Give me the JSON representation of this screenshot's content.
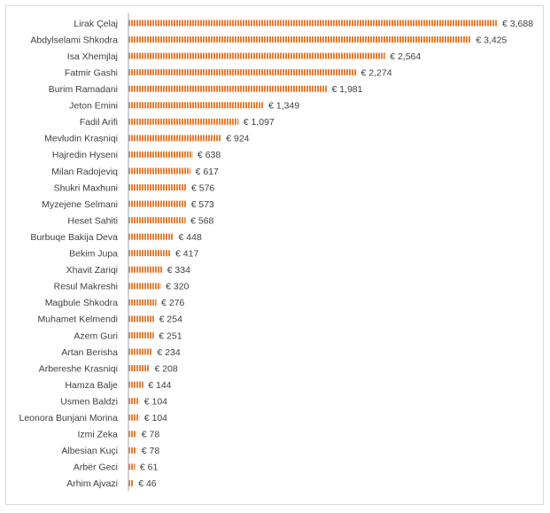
{
  "chart_data": {
    "type": "bar",
    "orientation": "horizontal",
    "title": "",
    "xlabel": "",
    "ylabel": "",
    "currency_prefix": "€ ",
    "bar_color": "#ED7D31",
    "bar_pattern": "vertical-hatch",
    "grid": false,
    "legend": "none",
    "xlim": [
      0,
      3688
    ],
    "categories": [
      "Lirak Çelaj",
      "Abdylselami Shkodra",
      "Isa Xhemjlaj",
      "Fatmir Gashi",
      "Burim Ramadani",
      "Jeton Emini",
      "Fadil Arifi",
      "Mevludin Krasniqi",
      "Hajredin Hyseni",
      "Milan Radojeviq",
      "Shukri Maxhuni",
      "Myzejene Selmani",
      "Heset Sahiti",
      "Burbuqe Bakija Deva",
      "Bekim Jupa",
      "Xhavit Zariqi",
      "Resul Makreshi",
      "Magbule Shkodra",
      "Muhamet Kelmendi",
      "Azem Guri",
      "Artan Berisha",
      "Arbereshe Krasniqi",
      "Hamza Balje",
      "Usmen Baldzi",
      "Leonora Bunjani Morina",
      "Izmi Zeka",
      "Albesian Kuçi",
      "Arbër Geci",
      "Arhim Ajvazi"
    ],
    "values": [
      3688,
      3425,
      2564,
      2274,
      1981,
      1349,
      1097,
      924,
      638,
      617,
      576,
      573,
      568,
      448,
      417,
      334,
      320,
      276,
      254,
      251,
      234,
      208,
      144,
      104,
      104,
      78,
      78,
      61,
      46
    ],
    "value_labels": [
      "€ 3,688",
      "€ 3,425",
      "€ 2,564",
      "€ 2,274",
      "€ 1,981",
      "€ 1,349",
      "€ 1,097",
      "€ 924",
      "€ 638",
      "€ 617",
      "€ 576",
      "€ 573",
      "€ 568",
      "€ 448",
      "€ 417",
      "€ 334",
      "€ 320",
      "€ 276",
      "€ 254",
      "€ 251",
      "€ 234",
      "€ 208",
      "€ 144",
      "€ 104",
      "€ 104",
      "€ 78",
      "€ 78",
      "€ 61",
      "€ 46"
    ]
  }
}
